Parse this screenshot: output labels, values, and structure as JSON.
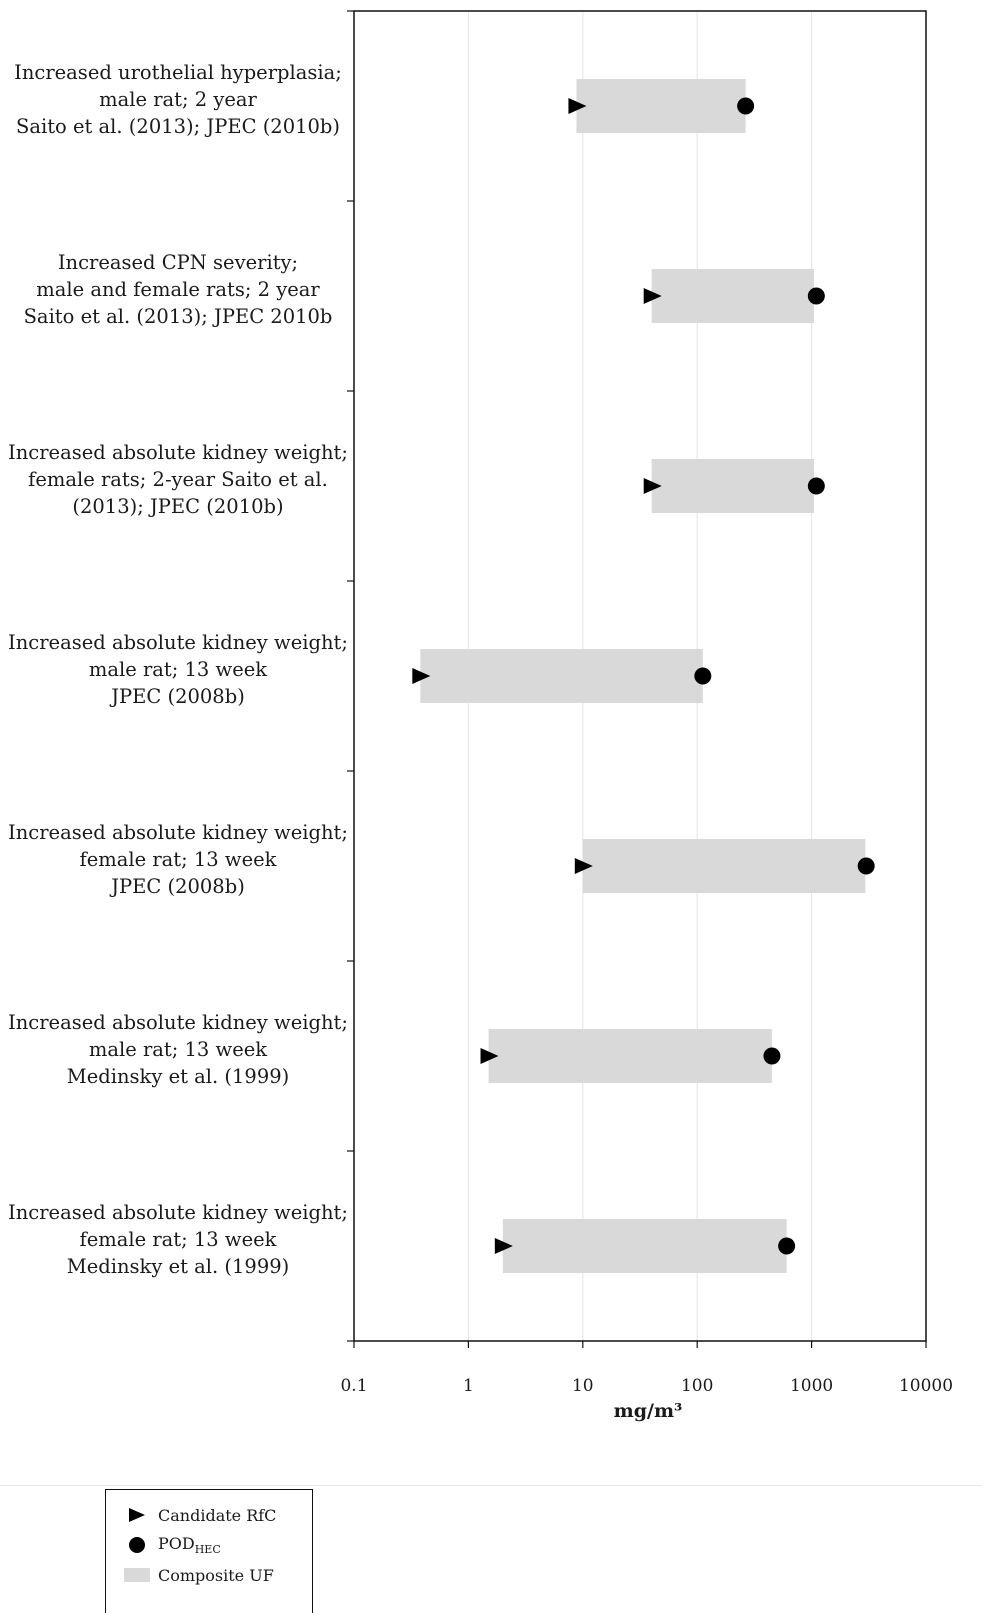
{
  "chart_data": {
    "type": "range-dot",
    "title": "",
    "xlabel": "mg/m³",
    "ylabel": "",
    "xscale": "log",
    "xlim": [
      0.1,
      10000
    ],
    "x_ticks": [
      "0.1",
      "1",
      "10",
      "100",
      "1000",
      "10000"
    ],
    "grid": "vertical gridlines at each decade",
    "categories": [
      [
        "Increased urothelial hyperplasia;",
        "male rat; 2 year",
        "Saito et al. (2013); JPEC (2010b)"
      ],
      [
        "Increased CPN severity;",
        "male and female rats; 2 year",
        "Saito et al. (2013); JPEC 2010b"
      ],
      [
        "Increased absolute kidney weight;",
        "female rats; 2-year  Saito et al.",
        "(2013); JPEC (2010b)"
      ],
      [
        "Increased absolute kidney weight;",
        "male rat; 13 week",
        "JPEC (2008b)"
      ],
      [
        "Increased absolute kidney weight;",
        "female rat; 13 week",
        "JPEC (2008b)"
      ],
      [
        "Increased absolute kidney weight;",
        "male rat; 13 week",
        "Medinsky et al. (1999)"
      ],
      [
        "Increased absolute kidney weight;",
        "female rat; 13 week",
        "Medinsky et al. (1999)"
      ]
    ],
    "series": [
      {
        "name": "Candidate RfC",
        "marker": "triangle-right",
        "color": "#000000",
        "values": [
          8.8,
          40,
          40,
          0.38,
          10,
          1.5,
          2.0
        ]
      },
      {
        "name": "POD_HEC",
        "marker": "circle",
        "color": "#000000",
        "values": [
          265,
          1100,
          1100,
          112,
          3000,
          450,
          605
        ]
      },
      {
        "name": "Composite UF",
        "marker": "bar",
        "color": "#d9d9d9",
        "ranges": [
          [
            8.8,
            265
          ],
          [
            40,
            1050
          ],
          [
            40,
            1050
          ],
          [
            0.38,
            112
          ],
          [
            10,
            2950
          ],
          [
            1.5,
            450
          ],
          [
            2.0,
            605
          ]
        ]
      }
    ]
  },
  "legend": {
    "items": [
      {
        "label": "Candidate RfC",
        "icon": "triangle-right-icon"
      },
      {
        "label": "POD",
        "sub": "HEC",
        "icon": "circle-icon"
      },
      {
        "label": "Composite UF",
        "icon": "gray-bar-icon"
      }
    ]
  },
  "colors": {
    "bar": "#d9d9d9",
    "marker": "#000000",
    "grid": "#e3e3e3",
    "axis": "#111111"
  }
}
